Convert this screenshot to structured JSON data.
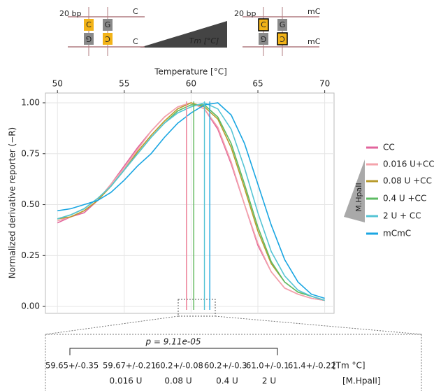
{
  "chart_data": {
    "type": "line",
    "x_label": "Temperature [°C]",
    "y_label": "Normalized derivative reporter (−R)",
    "x": [
      50,
      51,
      52,
      53,
      54,
      55,
      56,
      57,
      58,
      59,
      60,
      61,
      62,
      63,
      64,
      65,
      66,
      67,
      68,
      69,
      70
    ],
    "xlim": [
      49.1,
      70.7
    ],
    "xticks": [
      50,
      55,
      60,
      65,
      70
    ],
    "ylim": [
      -0.034,
      1.048
    ],
    "yticks": [
      {
        "value": 0,
        "label": "0.00"
      },
      {
        "value": 0.25,
        "label": "0.25"
      },
      {
        "value": 0.5,
        "label": "0.50"
      },
      {
        "value": 0.75,
        "label": "0.75"
      },
      {
        "value": 1,
        "label": "1.00"
      }
    ],
    "grid": true,
    "series": [
      {
        "name": "CC",
        "color": "#e2649c",
        "tm": 59.65,
        "tm_label": "59.65+/-0.35",
        "values": [
          0.41,
          0.44,
          0.46,
          0.52,
          0.6,
          0.69,
          0.78,
          0.86,
          0.93,
          0.98,
          1.0,
          0.97,
          0.87,
          0.7,
          0.5,
          0.3,
          0.17,
          0.09,
          0.06,
          0.04,
          0.03
        ]
      },
      {
        "name": "0.016 U+CC",
        "color": "#f4a3ab",
        "tm": 59.67,
        "tm_label": "59.67+/-0.21",
        "dose": "0.016 U",
        "values": [
          0.42,
          0.44,
          0.47,
          0.52,
          0.6,
          0.68,
          0.77,
          0.86,
          0.93,
          0.98,
          1.0,
          0.97,
          0.88,
          0.71,
          0.5,
          0.31,
          0.17,
          0.09,
          0.06,
          0.04,
          0.03
        ]
      },
      {
        "name": "0.08 U +CC",
        "color": "#b89b2c",
        "tm": 60.2,
        "tm_label": "60.2+/-0.08",
        "dose": "0.08 U",
        "values": [
          0.43,
          0.44,
          0.47,
          0.52,
          0.59,
          0.67,
          0.76,
          0.84,
          0.91,
          0.97,
          1.0,
          0.98,
          0.92,
          0.78,
          0.58,
          0.37,
          0.21,
          0.12,
          0.07,
          0.05,
          0.03
        ]
      },
      {
        "name": "0.4 U +CC",
        "color": "#5dbb63",
        "tm": 60.2,
        "tm_label": "60.2+/-0.3",
        "dose": "0.4 U",
        "values": [
          0.43,
          0.45,
          0.48,
          0.53,
          0.59,
          0.67,
          0.75,
          0.83,
          0.9,
          0.96,
          0.99,
          0.99,
          0.93,
          0.8,
          0.6,
          0.39,
          0.22,
          0.12,
          0.07,
          0.05,
          0.03
        ]
      },
      {
        "name": "2 U + CC",
        "color": "#55c4d4",
        "tm": 61.0,
        "tm_label": "61.0+/-0.1",
        "dose": "2 U",
        "values": [
          0.43,
          0.45,
          0.48,
          0.53,
          0.59,
          0.67,
          0.75,
          0.83,
          0.9,
          0.95,
          0.98,
          1.0,
          0.97,
          0.87,
          0.68,
          0.46,
          0.27,
          0.15,
          0.08,
          0.05,
          0.03
        ]
      },
      {
        "name": "mCmC",
        "color": "#1aa6e2",
        "tm": 61.4,
        "tm_label": "61.4+/-0.22",
        "values": [
          0.47,
          0.48,
          0.5,
          0.52,
          0.56,
          0.62,
          0.69,
          0.75,
          0.83,
          0.9,
          0.95,
          0.99,
          1.0,
          0.94,
          0.8,
          0.6,
          0.4,
          0.23,
          0.12,
          0.06,
          0.04
        ]
      }
    ],
    "legend_group_label": "M.HpaII"
  },
  "schematic": {
    "left": {
      "length": "20 bp",
      "top_end": "C",
      "bottom_end": "C",
      "top_boxes": [
        "C",
        "G"
      ],
      "bottom_boxes": [
        "G",
        "C"
      ]
    },
    "gradient_label": "Tm [°C]",
    "right": {
      "length": "20 bp",
      "top_end": "mC",
      "bottom_end": "mC",
      "top_boxes": [
        "C",
        "G"
      ],
      "bottom_boxes": [
        "G",
        "C"
      ]
    }
  },
  "inset": {
    "p_value": "p = 9.11e-05",
    "tm_unit": "[Tm °C]",
    "dose_unit": "[M.HpaII]"
  }
}
